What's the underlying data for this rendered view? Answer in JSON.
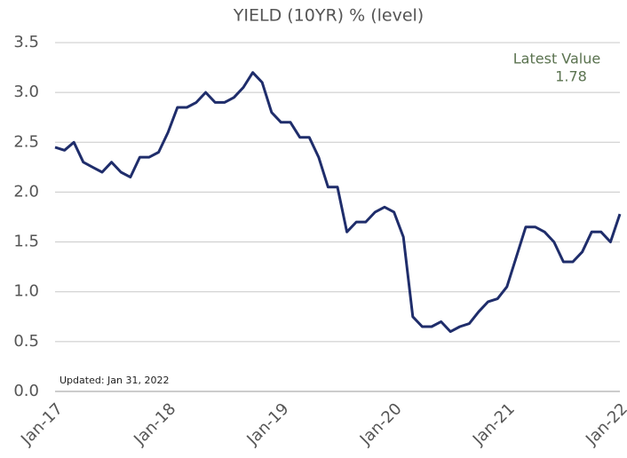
{
  "chart_data": {
    "type": "line",
    "title": "YIELD (10YR) % (level)",
    "x": [
      "2017-01",
      "2017-02",
      "2017-03",
      "2017-04",
      "2017-05",
      "2017-06",
      "2017-07",
      "2017-08",
      "2017-09",
      "2017-10",
      "2017-11",
      "2017-12",
      "2018-01",
      "2018-02",
      "2018-03",
      "2018-04",
      "2018-05",
      "2018-06",
      "2018-07",
      "2018-08",
      "2018-09",
      "2018-10",
      "2018-11",
      "2018-12",
      "2019-01",
      "2019-02",
      "2019-03",
      "2019-04",
      "2019-05",
      "2019-06",
      "2019-07",
      "2019-08",
      "2019-09",
      "2019-10",
      "2019-11",
      "2019-12",
      "2020-01",
      "2020-02",
      "2020-03",
      "2020-04",
      "2020-05",
      "2020-06",
      "2020-07",
      "2020-08",
      "2020-09",
      "2020-10",
      "2020-11",
      "2020-12",
      "2021-01",
      "2021-02",
      "2021-03",
      "2021-04",
      "2021-05",
      "2021-06",
      "2021-07",
      "2021-08",
      "2021-09",
      "2021-10",
      "2021-11",
      "2021-12",
      "2022-01"
    ],
    "series": [
      {
        "name": "YIELD (10YR)",
        "color": "#1f2d6b",
        "values": [
          2.45,
          2.42,
          2.5,
          2.3,
          2.25,
          2.2,
          2.3,
          2.2,
          2.15,
          2.35,
          2.35,
          2.4,
          2.6,
          2.85,
          2.85,
          2.9,
          3.0,
          2.9,
          2.9,
          2.95,
          3.05,
          3.2,
          3.1,
          2.8,
          2.7,
          2.7,
          2.55,
          2.55,
          2.35,
          2.05,
          2.05,
          1.6,
          1.7,
          1.7,
          1.8,
          1.85,
          1.8,
          1.55,
          0.75,
          0.65,
          0.65,
          0.7,
          0.6,
          0.65,
          0.68,
          0.8,
          0.9,
          0.93,
          1.05,
          1.35,
          1.65,
          1.65,
          1.6,
          1.5,
          1.3,
          1.3,
          1.4,
          1.6,
          1.6,
          1.5,
          1.78
        ]
      }
    ],
    "xlim": [
      "2017-01",
      "2022-01"
    ],
    "xticks": [
      {
        "value": "2017-01",
        "label": "Jan-17"
      },
      {
        "value": "2018-01",
        "label": "Jan-18"
      },
      {
        "value": "2019-01",
        "label": "Jan-19"
      },
      {
        "value": "2020-01",
        "label": "Jan-20"
      },
      {
        "value": "2021-01",
        "label": "Jan-21"
      },
      {
        "value": "2022-01",
        "label": "Jan-22"
      }
    ],
    "ylim": [
      0,
      3.5
    ],
    "yticks": [
      {
        "value": 0,
        "label": "0.0"
      },
      0.5,
      {
        "value": 1,
        "label": "1.0"
      },
      1.5,
      {
        "value": 2,
        "label": "2.0"
      },
      2.5,
      {
        "value": 3,
        "label": "3.0"
      },
      3.5
    ],
    "grid": true,
    "annotations": [
      "Latest Value",
      "1.78",
      "Updated: Jan 31, 2022"
    ]
  }
}
